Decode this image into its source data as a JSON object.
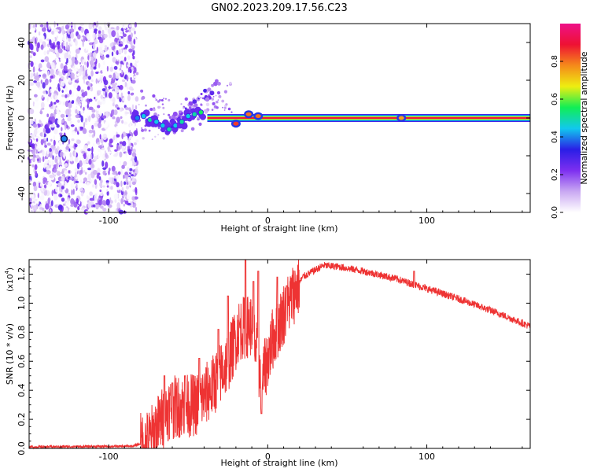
{
  "title": "GN02.2023.209.17.56.C23",
  "chart_data": [
    {
      "type": "heatmap",
      "name": "spectrogram",
      "xlabel": "Height of straight line (km)",
      "ylabel": "Frequency (Hz)",
      "xlim": [
        -150,
        165
      ],
      "ylim": [
        -50,
        50
      ],
      "xticks": [
        {
          "value": -100,
          "label": "-100"
        },
        {
          "value": 0,
          "label": "0"
        },
        {
          "value": 100,
          "label": "100"
        }
      ],
      "yticks": [
        {
          "value": -40,
          "label": "-40"
        },
        {
          "value": -20,
          "label": "-20"
        },
        {
          "value": 0,
          "label": "0"
        },
        {
          "value": 20,
          "label": "20"
        },
        {
          "value": 40,
          "label": "40"
        }
      ],
      "noise_region": {
        "x_from": -150,
        "x_to": -82
      },
      "carrier": {
        "x_from": -38,
        "x_to": 165,
        "frequency": 0,
        "amplitude": 1.0
      },
      "trace": [
        {
          "x": -82,
          "y": 0,
          "a": 0.4
        },
        {
          "x": -78,
          "y": 1,
          "a": 0.45
        },
        {
          "x": -74,
          "y": -1,
          "a": 0.5
        },
        {
          "x": -70,
          "y": -2,
          "a": 0.45
        },
        {
          "x": -66,
          "y": -4,
          "a": 0.45
        },
        {
          "x": -62,
          "y": -6,
          "a": 0.5
        },
        {
          "x": -58,
          "y": -4,
          "a": 0.45
        },
        {
          "x": -54,
          "y": -2,
          "a": 0.5
        },
        {
          "x": -50,
          "y": 1,
          "a": 0.45
        },
        {
          "x": -46,
          "y": 2,
          "a": 0.5
        },
        {
          "x": -42,
          "y": 3,
          "a": 0.55
        }
      ],
      "features": [
        {
          "x": -20,
          "y": -3,
          "a": 0.85
        },
        {
          "x": -12,
          "y": 2,
          "a": 0.8
        },
        {
          "x": -6,
          "y": 1,
          "a": 0.8
        },
        {
          "x": 84,
          "y": 0,
          "a": 0.75
        }
      ],
      "outlier": {
        "x": -128,
        "y": -11,
        "a": 0.2
      }
    },
    {
      "type": "line",
      "name": "snr",
      "xlabel": "Height of straight line (km)",
      "ylabel": "SNR (10 * v/v)",
      "ylabel_scale": "(x10",
      "ylabel_exp": "4",
      "ylabel_close": ")",
      "xlim": [
        -150,
        165
      ],
      "ylim": [
        0,
        1.3
      ],
      "xticks": [
        {
          "value": -100,
          "label": "-100"
        },
        {
          "value": 0,
          "label": "0"
        },
        {
          "value": 100,
          "label": "100"
        }
      ],
      "yticks": [
        {
          "value": 0.0,
          "label": "0.0"
        },
        {
          "value": 0.2,
          "label": "0.2"
        },
        {
          "value": 0.4,
          "label": "0.4"
        },
        {
          "value": 0.6,
          "label": "0.6"
        },
        {
          "value": 0.8,
          "label": "0.8"
        },
        {
          "value": 1.0,
          "label": "1.0"
        },
        {
          "value": 1.2,
          "label": "1.2"
        }
      ],
      "color": "#ee3333",
      "envelope": [
        {
          "x": -150,
          "y": 0.01
        },
        {
          "x": -85,
          "y": 0.015
        },
        {
          "x": -75,
          "y": 0.05
        },
        {
          "x": -62,
          "y": 0.28
        },
        {
          "x": -45,
          "y": 0.3
        },
        {
          "x": -35,
          "y": 0.42
        },
        {
          "x": -25,
          "y": 0.6
        },
        {
          "x": -18,
          "y": 0.82
        },
        {
          "x": -10,
          "y": 0.85
        },
        {
          "x": -4,
          "y": 0.45
        },
        {
          "x": 3,
          "y": 0.75
        },
        {
          "x": 12,
          "y": 0.98
        },
        {
          "x": 22,
          "y": 1.18
        },
        {
          "x": 35,
          "y": 1.26
        },
        {
          "x": 45,
          "y": 1.25
        },
        {
          "x": 60,
          "y": 1.22
        },
        {
          "x": 80,
          "y": 1.17
        },
        {
          "x": 100,
          "y": 1.1
        },
        {
          "x": 120,
          "y": 1.03
        },
        {
          "x": 145,
          "y": 0.93
        },
        {
          "x": 165,
          "y": 0.84
        }
      ],
      "spikes": [
        {
          "x": -65,
          "y": 0.5
        },
        {
          "x": -60,
          "y": 0.45
        },
        {
          "x": -52,
          "y": 0.5
        },
        {
          "x": -43,
          "y": 0.62
        },
        {
          "x": -31,
          "y": 0.82
        },
        {
          "x": -25,
          "y": 1.05
        },
        {
          "x": -14,
          "y": 1.3
        },
        {
          "x": -9,
          "y": 1.15
        },
        {
          "x": -6,
          "y": 1.22
        },
        {
          "x": -4,
          "y": 0.24
        },
        {
          "x": 6,
          "y": 1.18
        },
        {
          "x": 12,
          "y": 1.12
        },
        {
          "x": 92,
          "y": 1.22
        }
      ]
    }
  ],
  "colorbar": {
    "label": "Normalized spectral amplitude",
    "range": [
      0,
      1
    ],
    "ticks": [
      {
        "value": 0.0,
        "label": "0.0"
      },
      {
        "value": 0.2,
        "label": "0.2"
      },
      {
        "value": 0.4,
        "label": "0.4"
      },
      {
        "value": 0.6,
        "label": "0.6"
      },
      {
        "value": 0.8,
        "label": "0.8"
      }
    ],
    "stops": [
      "#ffffff",
      "#c9a8f2",
      "#7d2ff0",
      "#2a1ee6",
      "#11c8ee",
      "#11ee55",
      "#eeee11",
      "#f58a1a",
      "#ee1133",
      "#ee1188"
    ]
  }
}
